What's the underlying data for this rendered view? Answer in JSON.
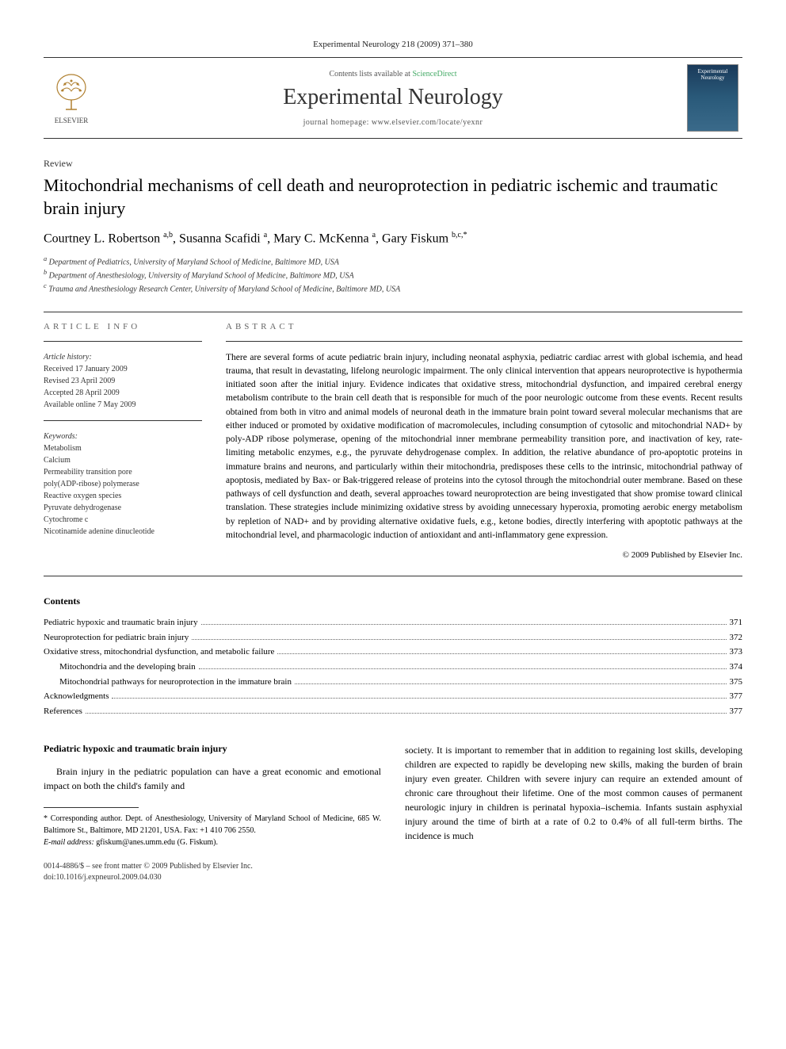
{
  "journal_ref": "Experimental Neurology 218 (2009) 371–380",
  "header": {
    "contents_line_prefix": "Contents lists available at ",
    "contents_link": "ScienceDirect",
    "journal_title": "Experimental Neurology",
    "homepage_prefix": "journal homepage: ",
    "homepage_url": "www.elsevier.com/locate/yexnr",
    "elsevier_label": "ELSEVIER",
    "cover_label": "Experimental Neurology"
  },
  "article_type": "Review",
  "title": "Mitochondrial mechanisms of cell death and neuroprotection in pediatric ischemic and traumatic brain injury",
  "authors_html": "Courtney L. Robertson <sup>a,b</sup>, Susanna Scafidi <sup>a</sup>, Mary C. McKenna <sup>a</sup>, Gary Fiskum <sup>b,c,*</sup>",
  "affiliations": [
    "a Department of Pediatrics, University of Maryland School of Medicine, Baltimore MD, USA",
    "b Department of Anesthesiology, University of Maryland School of Medicine, Baltimore MD, USA",
    "c Trauma and Anesthesiology Research Center, University of Maryland School of Medicine, Baltimore MD, USA"
  ],
  "info": {
    "label": "ARTICLE INFO",
    "history_label": "Article history:",
    "history": [
      "Received 17 January 2009",
      "Revised 23 April 2009",
      "Accepted 28 April 2009",
      "Available online 7 May 2009"
    ],
    "keywords_label": "Keywords:",
    "keywords": [
      "Metabolism",
      "Calcium",
      "Permeability transition pore",
      "poly(ADP-ribose) polymerase",
      "Reactive oxygen species",
      "Pyruvate dehydrogenase",
      "Cytochrome c",
      "Nicotinamide adenine dinucleotide"
    ]
  },
  "abstract": {
    "label": "ABSTRACT",
    "text": "There are several forms of acute pediatric brain injury, including neonatal asphyxia, pediatric cardiac arrest with global ischemia, and head trauma, that result in devastating, lifelong neurologic impairment. The only clinical intervention that appears neuroprotective is hypothermia initiated soon after the initial injury. Evidence indicates that oxidative stress, mitochondrial dysfunction, and impaired cerebral energy metabolism contribute to the brain cell death that is responsible for much of the poor neurologic outcome from these events. Recent results obtained from both in vitro and animal models of neuronal death in the immature brain point toward several molecular mechanisms that are either induced or promoted by oxidative modification of macromolecules, including consumption of cytosolic and mitochondrial NAD+ by poly-ADP ribose polymerase, opening of the mitochondrial inner membrane permeability transition pore, and inactivation of key, rate-limiting metabolic enzymes, e.g., the pyruvate dehydrogenase complex. In addition, the relative abundance of pro-apoptotic proteins in immature brains and neurons, and particularly within their mitochondria, predisposes these cells to the intrinsic, mitochondrial pathway of apoptosis, mediated by Bax- or Bak-triggered release of proteins into the cytosol through the mitochondrial outer membrane. Based on these pathways of cell dysfunction and death, several approaches toward neuroprotection are being investigated that show promise toward clinical translation. These strategies include minimizing oxidative stress by avoiding unnecessary hyperoxia, promoting aerobic energy metabolism by repletion of NAD+ and by providing alternative oxidative fuels, e.g., ketone bodies, directly interfering with apoptotic pathways at the mitochondrial level, and pharmacologic induction of antioxidant and anti-inflammatory gene expression.",
    "copyright": "© 2009 Published by Elsevier Inc."
  },
  "contents": {
    "heading": "Contents",
    "items": [
      {
        "label": "Pediatric hypoxic and traumatic brain injury",
        "page": "371",
        "indent": 0
      },
      {
        "label": "Neuroprotection for pediatric brain injury",
        "page": "372",
        "indent": 0
      },
      {
        "label": "Oxidative stress, mitochondrial dysfunction, and metabolic failure",
        "page": "373",
        "indent": 0
      },
      {
        "label": "Mitochondria and the developing brain",
        "page": "374",
        "indent": 1
      },
      {
        "label": "Mitochondrial pathways for neuroprotection in the immature brain",
        "page": "375",
        "indent": 1
      },
      {
        "label": "Acknowledgments",
        "page": "377",
        "indent": 0
      },
      {
        "label": "References",
        "page": "377",
        "indent": 0
      }
    ]
  },
  "body": {
    "heading": "Pediatric hypoxic and traumatic brain injury",
    "col1_para": "Brain injury in the pediatric population can have a great economic and emotional impact on both the child's family and",
    "col2_para": "society. It is important to remember that in addition to regaining lost skills, developing children are expected to rapidly be developing new skills, making the burden of brain injury even greater. Children with severe injury can require an extended amount of chronic care throughout their lifetime. One of the most common causes of permanent neurologic injury in children is perinatal hypoxia–ischemia. Infants sustain asphyxial injury around the time of birth at a rate of 0.2 to 0.4% of all full-term births. The incidence is much"
  },
  "footnote": {
    "corresp": "* Corresponding author. Dept. of Anesthesiology, University of Maryland School of Medicine, 685 W. Baltimore St., Baltimore, MD 21201, USA. Fax: +1 410 706 2550.",
    "email_label": "E-mail address: ",
    "email": "gfiskum@anes.umm.edu",
    "email_suffix": " (G. Fiskum)."
  },
  "footer": {
    "issn_line": "0014-4886/$ – see front matter © 2009 Published by Elsevier Inc.",
    "doi_line": "doi:10.1016/j.expneurol.2009.04.030"
  },
  "colors": {
    "text": "#000000",
    "muted": "#555555",
    "rule": "#333333",
    "link": "#44aa66",
    "cover_bg_top": "#1a3a5a",
    "cover_bg_bottom": "#3a6a8a"
  },
  "typography": {
    "body_pt": 12,
    "title_pt": 22,
    "journal_title_pt": 28,
    "abstract_pt": 11.5,
    "small_pt": 10
  }
}
